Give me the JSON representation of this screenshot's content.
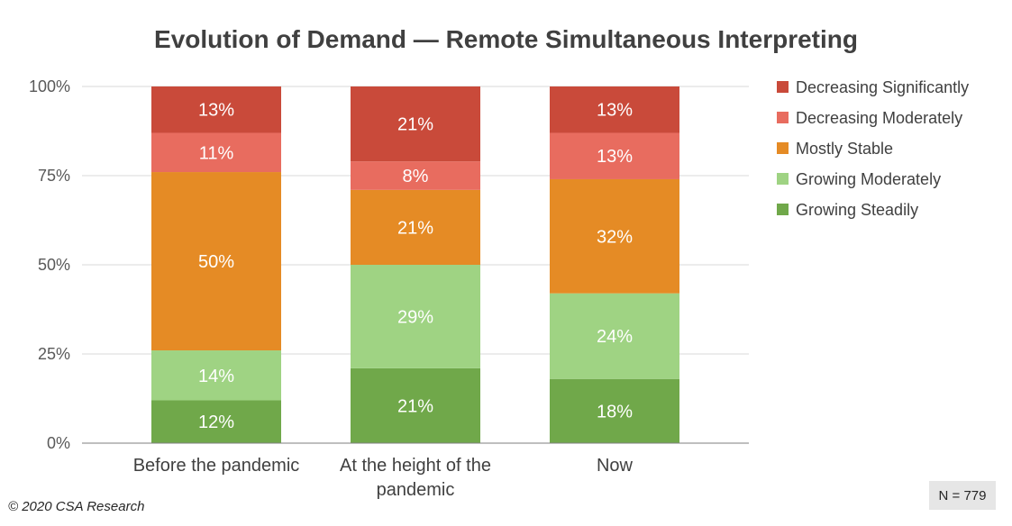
{
  "chart_data": {
    "type": "bar",
    "stacked": true,
    "title": "Evolution of Demand — Remote Simultaneous Interpreting",
    "categories": [
      "Before the pandemic",
      "At the height of the pandemic",
      "Now"
    ],
    "category_lines": [
      [
        "Before the pandemic"
      ],
      [
        "At the height of the",
        "pandemic"
      ],
      [
        "Now"
      ]
    ],
    "ylim": [
      0,
      100
    ],
    "y_ticks": [
      "0%",
      "25%",
      "50%",
      "75%",
      "100%"
    ],
    "y_tick_values": [
      0,
      25,
      50,
      75,
      100
    ],
    "grid": true,
    "legend_position": "right",
    "series": [
      {
        "name": "Growing Steadily",
        "color": "#70a84a",
        "values": [
          12,
          21,
          18
        ],
        "labels": [
          "12%",
          "21%",
          "18%"
        ]
      },
      {
        "name": "Growing Moderately",
        "color": "#9fd383",
        "values": [
          14,
          29,
          24
        ],
        "labels": [
          "14%",
          "29%",
          "24%"
        ]
      },
      {
        "name": "Mostly Stable",
        "color": "#e58b25",
        "values": [
          50,
          21,
          32
        ],
        "labels": [
          "50%",
          "21%",
          "32%"
        ]
      },
      {
        "name": "Decreasing Moderately",
        "color": "#e86c5f",
        "values": [
          11,
          8,
          13
        ],
        "labels": [
          "11%",
          "8%",
          "13%"
        ]
      },
      {
        "name": "Decreasing Significantly",
        "color": "#c94a3a",
        "values": [
          13,
          21,
          13
        ],
        "labels": [
          "13%",
          "21%",
          "13%"
        ]
      }
    ]
  },
  "footnote": "© 2020 CSA Research",
  "sample_size": "N = 779"
}
